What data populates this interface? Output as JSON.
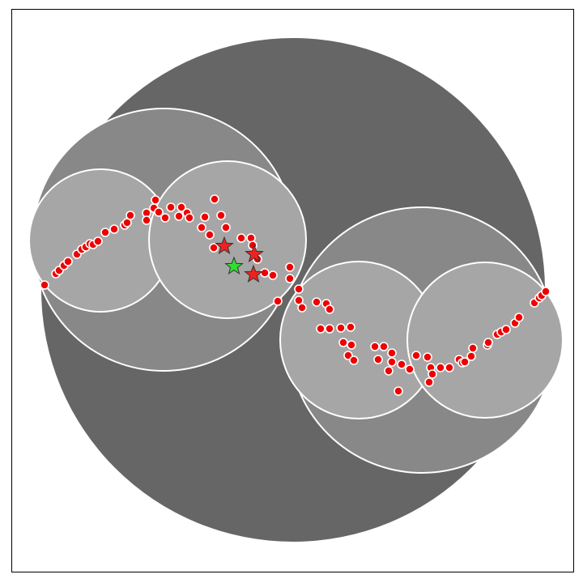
{
  "colors": {
    "background": "#ffffff",
    "frame": "#000000",
    "level1_fill": "#666666",
    "level2_fill": "#888888",
    "level3_fill": "#a6a6a6",
    "circle_stroke": "#ffffff",
    "point_fill": "#ee0000",
    "point_stroke": "#ffffff",
    "star_red": "#ee2222",
    "star_green": "#33dd33",
    "star_stroke": "#333333"
  },
  "diagram": {
    "type": "hierarchical-circle-clustering",
    "levels": 3,
    "circle_count": 7,
    "point_count": 98,
    "red_star_count": 3,
    "green_star_count": 1,
    "frame": true
  }
}
